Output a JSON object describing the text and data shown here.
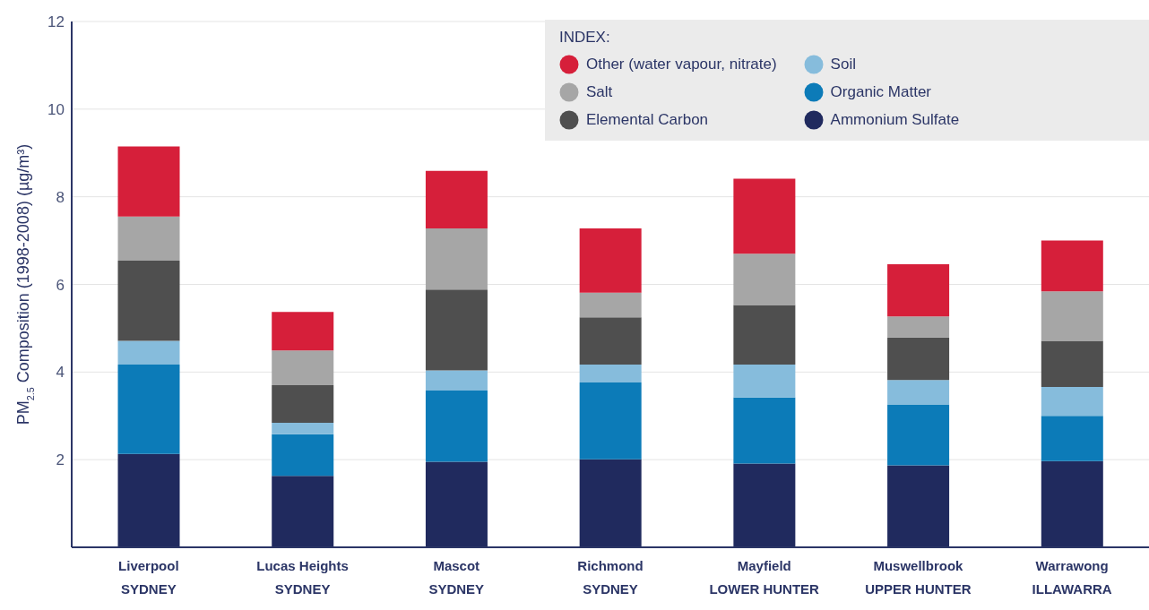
{
  "chart_data": {
    "type": "bar",
    "stacked": true,
    "ylabel": "PM$_{2.5}$ Composition (1998-2008) (µg/m³)",
    "legend_title": "INDEX:",
    "legend": "top right",
    "grid": "y",
    "categories": [
      "Liverpool\nSYDNEY",
      "Lucas Heights\nSYDNEY",
      "Mascot\nSYDNEY",
      "Richmond\nSYDNEY",
      "Mayfield\nLOWER HUNTER",
      "Muswellbrook\nUPPER HUNTER",
      "Warrawong\nILLAWARRA"
    ],
    "ylim": [
      0,
      12
    ],
    "yticks": [
      {
        "value": 0,
        "label": null
      },
      2,
      4,
      6,
      8,
      10,
      12
    ],
    "series": [
      {
        "name": "Ammonium Sulfate",
        "color": "#202a5e",
        "values": [
          2.13,
          1.63,
          1.95,
          2.01,
          1.91,
          1.87,
          1.97
        ]
      },
      {
        "name": "Organic Matter",
        "color": "#0c7bb8",
        "values": [
          2.04,
          0.95,
          1.63,
          1.75,
          1.51,
          1.39,
          1.03
        ]
      },
      {
        "name": "Soil",
        "color": "#86bcdc",
        "values": [
          0.54,
          0.26,
          0.46,
          0.41,
          0.75,
          0.56,
          0.66
        ]
      },
      {
        "name": "Elemental Carbon",
        "color": "#4f4f4f",
        "values": [
          1.83,
          0.86,
          1.84,
          1.08,
          1.36,
          0.97,
          1.05
        ]
      },
      {
        "name": "Salt",
        "color": "#a6a6a6",
        "values": [
          1.01,
          0.79,
          1.4,
          0.56,
          1.17,
          0.48,
          1.13
        ]
      },
      {
        "name": "Other (water vapour, nitrate)",
        "color": "#d61f3a",
        "values": [
          1.6,
          0.88,
          1.31,
          1.47,
          1.71,
          1.19,
          1.16
        ]
      }
    ]
  }
}
